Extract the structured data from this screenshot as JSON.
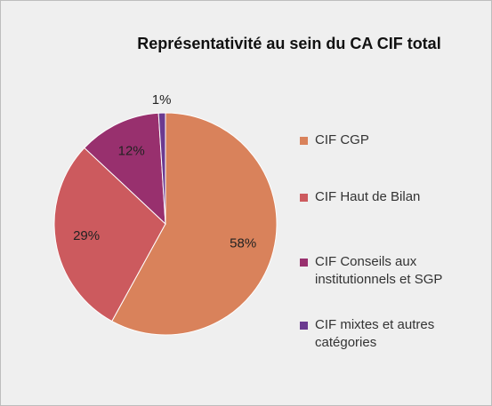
{
  "chart_data": {
    "type": "pie",
    "title": "Représentativité au sein du CA CIF total",
    "categories": [
      "CIF CGP",
      "CIF Haut de Bilan",
      "CIF Conseils aux institutionnels et SGP",
      "CIF mixtes et autres catégories"
    ],
    "values": [
      58,
      29,
      12,
      1
    ],
    "value_labels": [
      "58%",
      "29%",
      "12%",
      "1%"
    ],
    "colors": [
      "#d9825b",
      "#cc5a5e",
      "#98306e",
      "#6b3a90"
    ],
    "legend": "right"
  }
}
